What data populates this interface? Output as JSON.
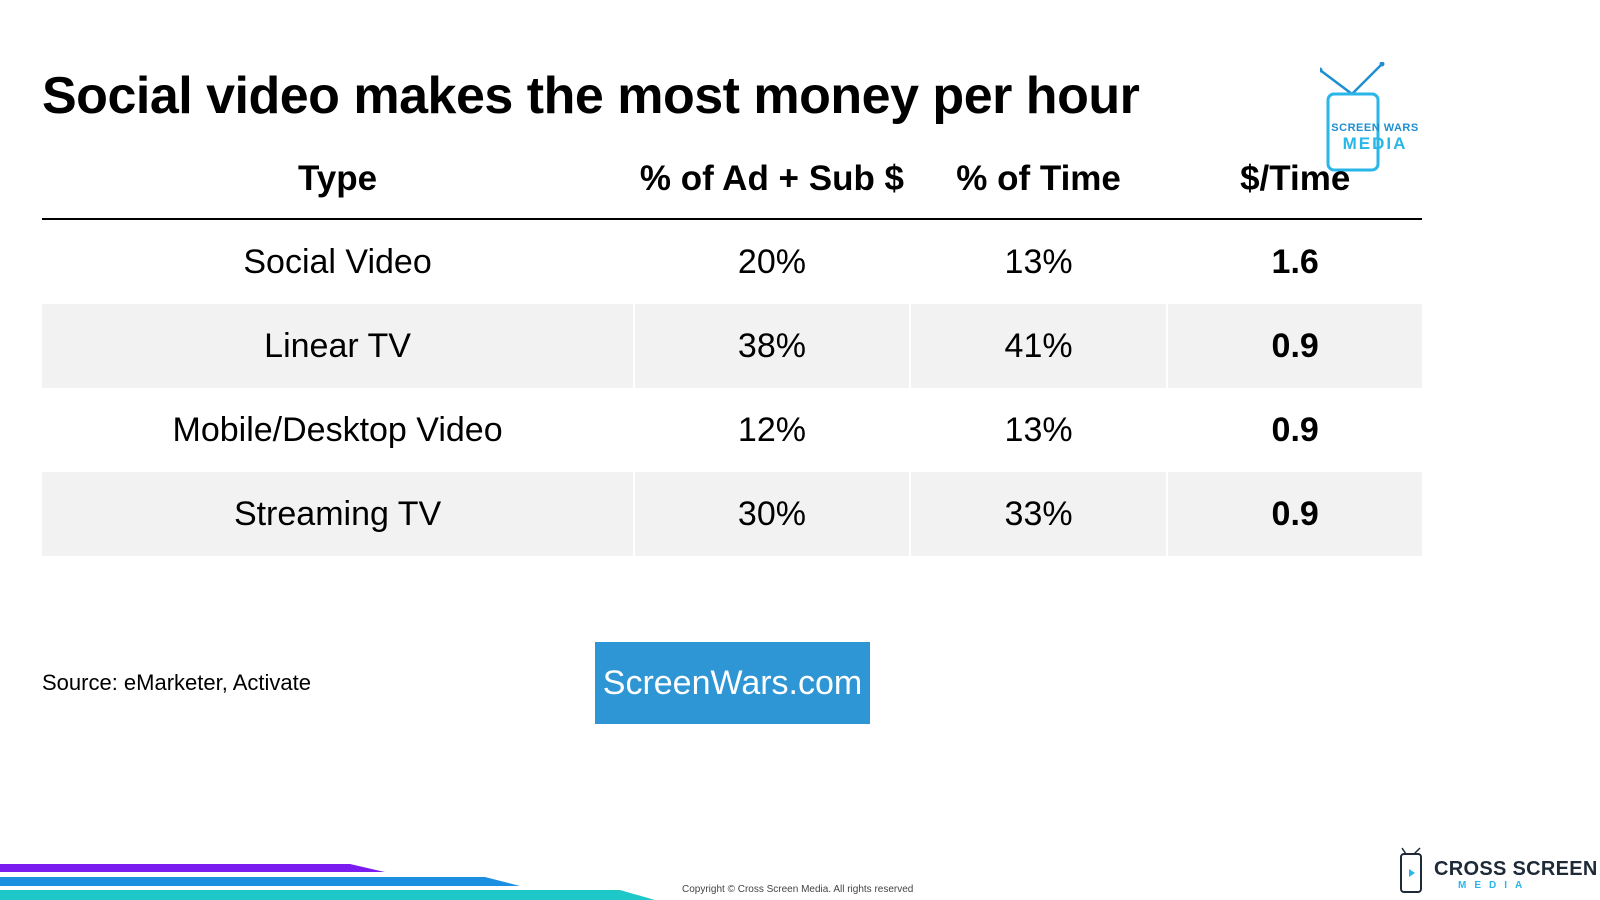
{
  "slide": {
    "title": "Social video makes the most money per hour",
    "source": "Source: eMarketer, Activate",
    "link_label": "ScreenWars.com",
    "copyright": "Copyright © Cross Screen Media. All rights reserved"
  },
  "logo_top": {
    "line1": "SCREEN WARS",
    "line2": "MEDIA",
    "color_primary": "#1f8fd0",
    "color_accent": "#29b6e8"
  },
  "logo_bottom": {
    "line1": "CROSS SCREEN",
    "line2": "MEDIA"
  },
  "table": {
    "headers": [
      "Type",
      "% of Ad + Sub $",
      "% of Time",
      "$/Time"
    ],
    "rows": [
      {
        "type": "Social Video",
        "ad_sub": "20%",
        "time": "13%",
        "per_time": "1.6"
      },
      {
        "type": "Linear TV",
        "ad_sub": "38%",
        "time": "41%",
        "per_time": "0.9"
      },
      {
        "type": "Mobile/Desktop Video",
        "ad_sub": "12%",
        "time": "13%",
        "per_time": "0.9"
      },
      {
        "type": "Streaming TV",
        "ad_sub": "30%",
        "time": "33%",
        "per_time": "0.9"
      }
    ],
    "shade_color": "#f2f2f2"
  },
  "colors": {
    "link_bg": "#2e96d4",
    "stripe_purple": "#7a1cf0",
    "stripe_blue": "#1d8fe0",
    "stripe_teal": "#1ec8c8"
  }
}
